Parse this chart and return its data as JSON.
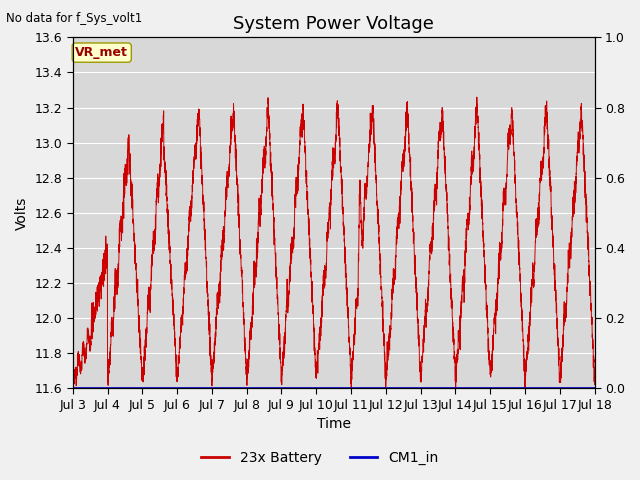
{
  "title": "System Power Voltage",
  "top_left_label": "No data for f_Sys_volt1",
  "annotation_label": "VR_met",
  "xlabel": "Time",
  "ylabel": "Volts",
  "ylim_left": [
    11.6,
    13.6
  ],
  "ylim_right": [
    0.0,
    1.0
  ],
  "yticks_left": [
    11.6,
    11.8,
    12.0,
    12.2,
    12.4,
    12.6,
    12.8,
    13.0,
    13.2,
    13.4,
    13.6
  ],
  "yticks_right": [
    0.0,
    0.2,
    0.4,
    0.6,
    0.8,
    1.0
  ],
  "xtick_labels": [
    "Jul 3",
    "Jul 4",
    "Jul 5",
    "Jul 6",
    "Jul 7",
    "Jul 8",
    "Jul 9",
    "Jul 10",
    "Jul 11",
    "Jul 12",
    "Jul 13",
    "Jul 14",
    "Jul 15",
    "Jul 16",
    "Jul 17",
    "Jul 18"
  ],
  "line_color_battery": "#cc0000",
  "line_color_cm1": "#0000cc",
  "legend_battery": "23x Battery",
  "legend_cm1": "CM1_in",
  "fig_facecolor": "#f0f0f0",
  "plot_bg_color": "#d8d8d8",
  "grid_color": "#ffffff",
  "title_fontsize": 13,
  "label_fontsize": 10,
  "tick_fontsize": 9,
  "annotation_facecolor": "#ffffcc",
  "annotation_edgecolor": "#999900",
  "annotation_textcolor": "#990000"
}
